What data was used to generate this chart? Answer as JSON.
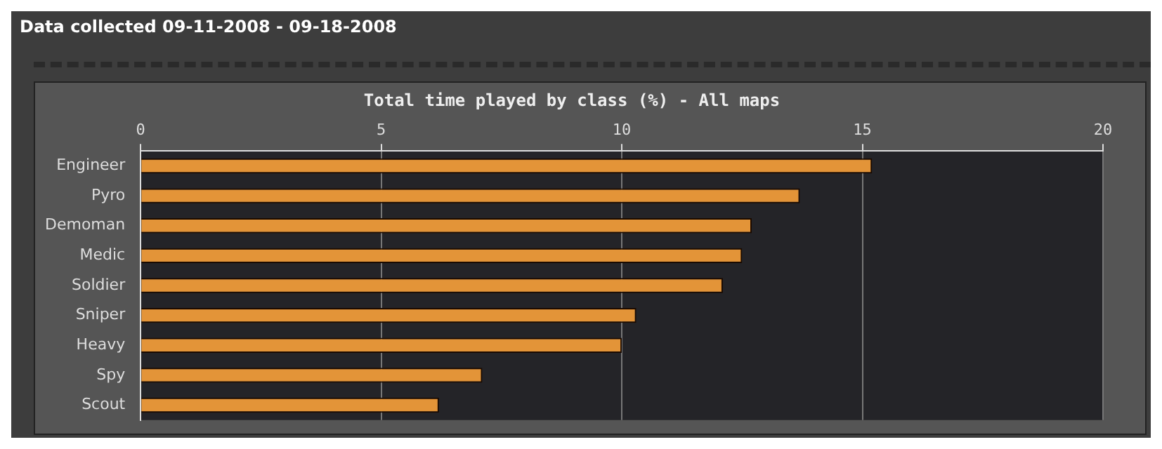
{
  "chart_data": {
    "type": "bar",
    "orientation": "horizontal",
    "title": "Total time played by class (%) - All maps",
    "subtitle": "Data collected 09-11-2008 - 09-18-2008",
    "categories": [
      "Engineer",
      "Pyro",
      "Demoman",
      "Medic",
      "Soldier",
      "Sniper",
      "Heavy",
      "Spy",
      "Scout"
    ],
    "values": [
      15.2,
      13.7,
      12.7,
      12.5,
      12.1,
      10.3,
      10.0,
      7.1,
      6.2
    ],
    "color": "#e39438",
    "xlim": [
      0,
      20
    ],
    "xticks": [
      0,
      5,
      10,
      15,
      20
    ],
    "grid": "x",
    "legend": false
  }
}
